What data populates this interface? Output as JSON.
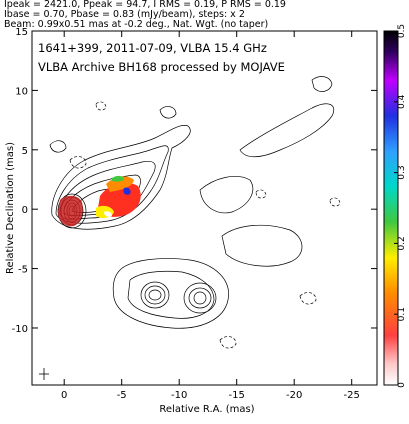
{
  "header": {
    "line1": "Ipeak = 2421.0, Ppeak = 94.7, I RMS = 0.19, P RMS = 0.19",
    "line2": "Ibase = 0.70, Pbase = 0.83 (mJy/beam), steps: x 2",
    "line3": "Beam: 0.99x0.51 mas at -0.2 deg., Nat. Wgt. (no taper)"
  },
  "plot": {
    "source_line": "1641+399, 2011-07-09, VLBA 15.4 GHz",
    "archive_line": "VLBA Archive BH168 processed by MOJAVE",
    "x_label": "Relative R.A. (mas)",
    "y_label": "Relative Declination (mas)"
  },
  "colorbar": {
    "ticks": [
      "0",
      "0.1",
      "0.2",
      "0.3",
      "0.4",
      "0.5"
    ]
  },
  "chart_data": {
    "type": "contour",
    "x_ticks": [
      0,
      -5,
      -10,
      -15,
      -20,
      -25
    ],
    "y_ticks": [
      15,
      10,
      5,
      0,
      -5,
      -10
    ],
    "xlim": [
      2.8,
      -27.2
    ],
    "ylim": [
      -14.8,
      15
    ],
    "colorbar_range": [
      0,
      0.5
    ],
    "colors": {
      "contour": "#000000",
      "dashed_contour": "#000000"
    }
  }
}
